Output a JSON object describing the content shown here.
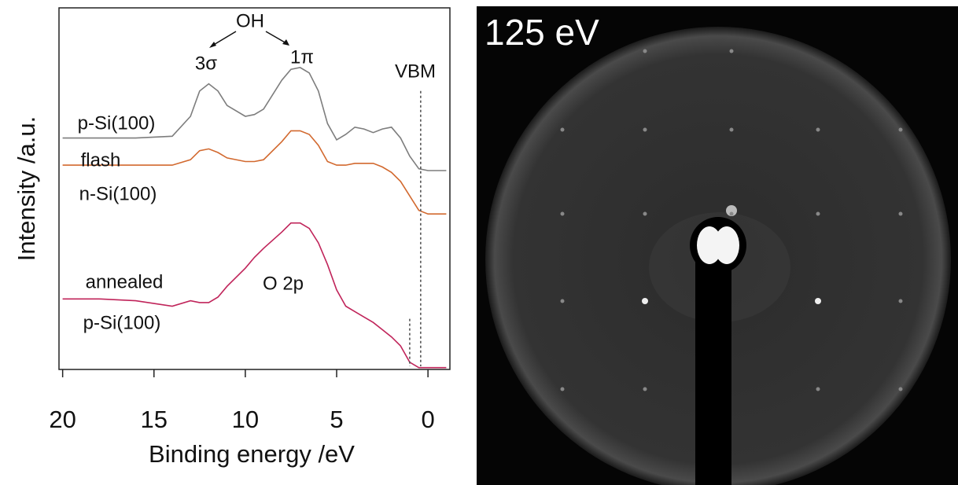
{
  "chart_data": {
    "type": "line",
    "xlabel": "Binding energy /eV",
    "ylabel": "Intensity /a.u.",
    "xlim": [
      20.2,
      -1.2
    ],
    "ylim": [
      0,
      100
    ],
    "xticks": [
      20,
      15,
      10,
      5,
      0
    ],
    "x": [
      20,
      18,
      16,
      14,
      13,
      12.5,
      12,
      11.5,
      11,
      10,
      9.5,
      9,
      8,
      7.5,
      7,
      6.5,
      6,
      5.5,
      5,
      4.5,
      4,
      3.5,
      3,
      2.5,
      2,
      1.5,
      1,
      0.5,
      0,
      -1
    ],
    "series": [
      {
        "labels": [
          "p-Si(100)"
        ],
        "color": "#7d7d7d",
        "values": [
          64,
          64,
          64,
          64.5,
          70,
          77,
          79,
          77,
          73,
          70,
          70.5,
          72,
          80,
          83,
          83.5,
          82,
          77,
          68,
          63.5,
          65,
          67,
          66.5,
          65.5,
          66.5,
          67,
          64,
          59,
          55.5,
          55,
          55
        ]
      },
      {
        "labels": [
          "flash",
          "n-Si(100)"
        ],
        "color": "#d2692f",
        "values": [
          56.5,
          56.5,
          56.5,
          56.5,
          58,
          60.5,
          61,
          60,
          58.5,
          57.5,
          57.5,
          58,
          63,
          66,
          66,
          65,
          62,
          57.5,
          56.5,
          56.5,
          57,
          57,
          57,
          56,
          54.5,
          52,
          48,
          44,
          43,
          43
        ]
      },
      {
        "labels": [
          "annealed",
          "p-Si(100)"
        ],
        "color": "#c0245a",
        "values": [
          19.5,
          19.5,
          19,
          17.5,
          19,
          18.5,
          18.5,
          20,
          23,
          28,
          31,
          33.5,
          38,
          40.5,
          40.5,
          39,
          35,
          29,
          22,
          17.5,
          16,
          14.5,
          13,
          11,
          9,
          6.5,
          2,
          0.5,
          0.5,
          0.5
        ]
      }
    ],
    "annotations": [
      "OH",
      "3σ",
      "1π",
      "VBM",
      "O 2p"
    ],
    "reference_lines": [
      {
        "x": 0.4,
        "ymax": 77
      },
      {
        "x": 1.0,
        "ymax": 14
      }
    ]
  },
  "image": {
    "label": "125 eV"
  }
}
